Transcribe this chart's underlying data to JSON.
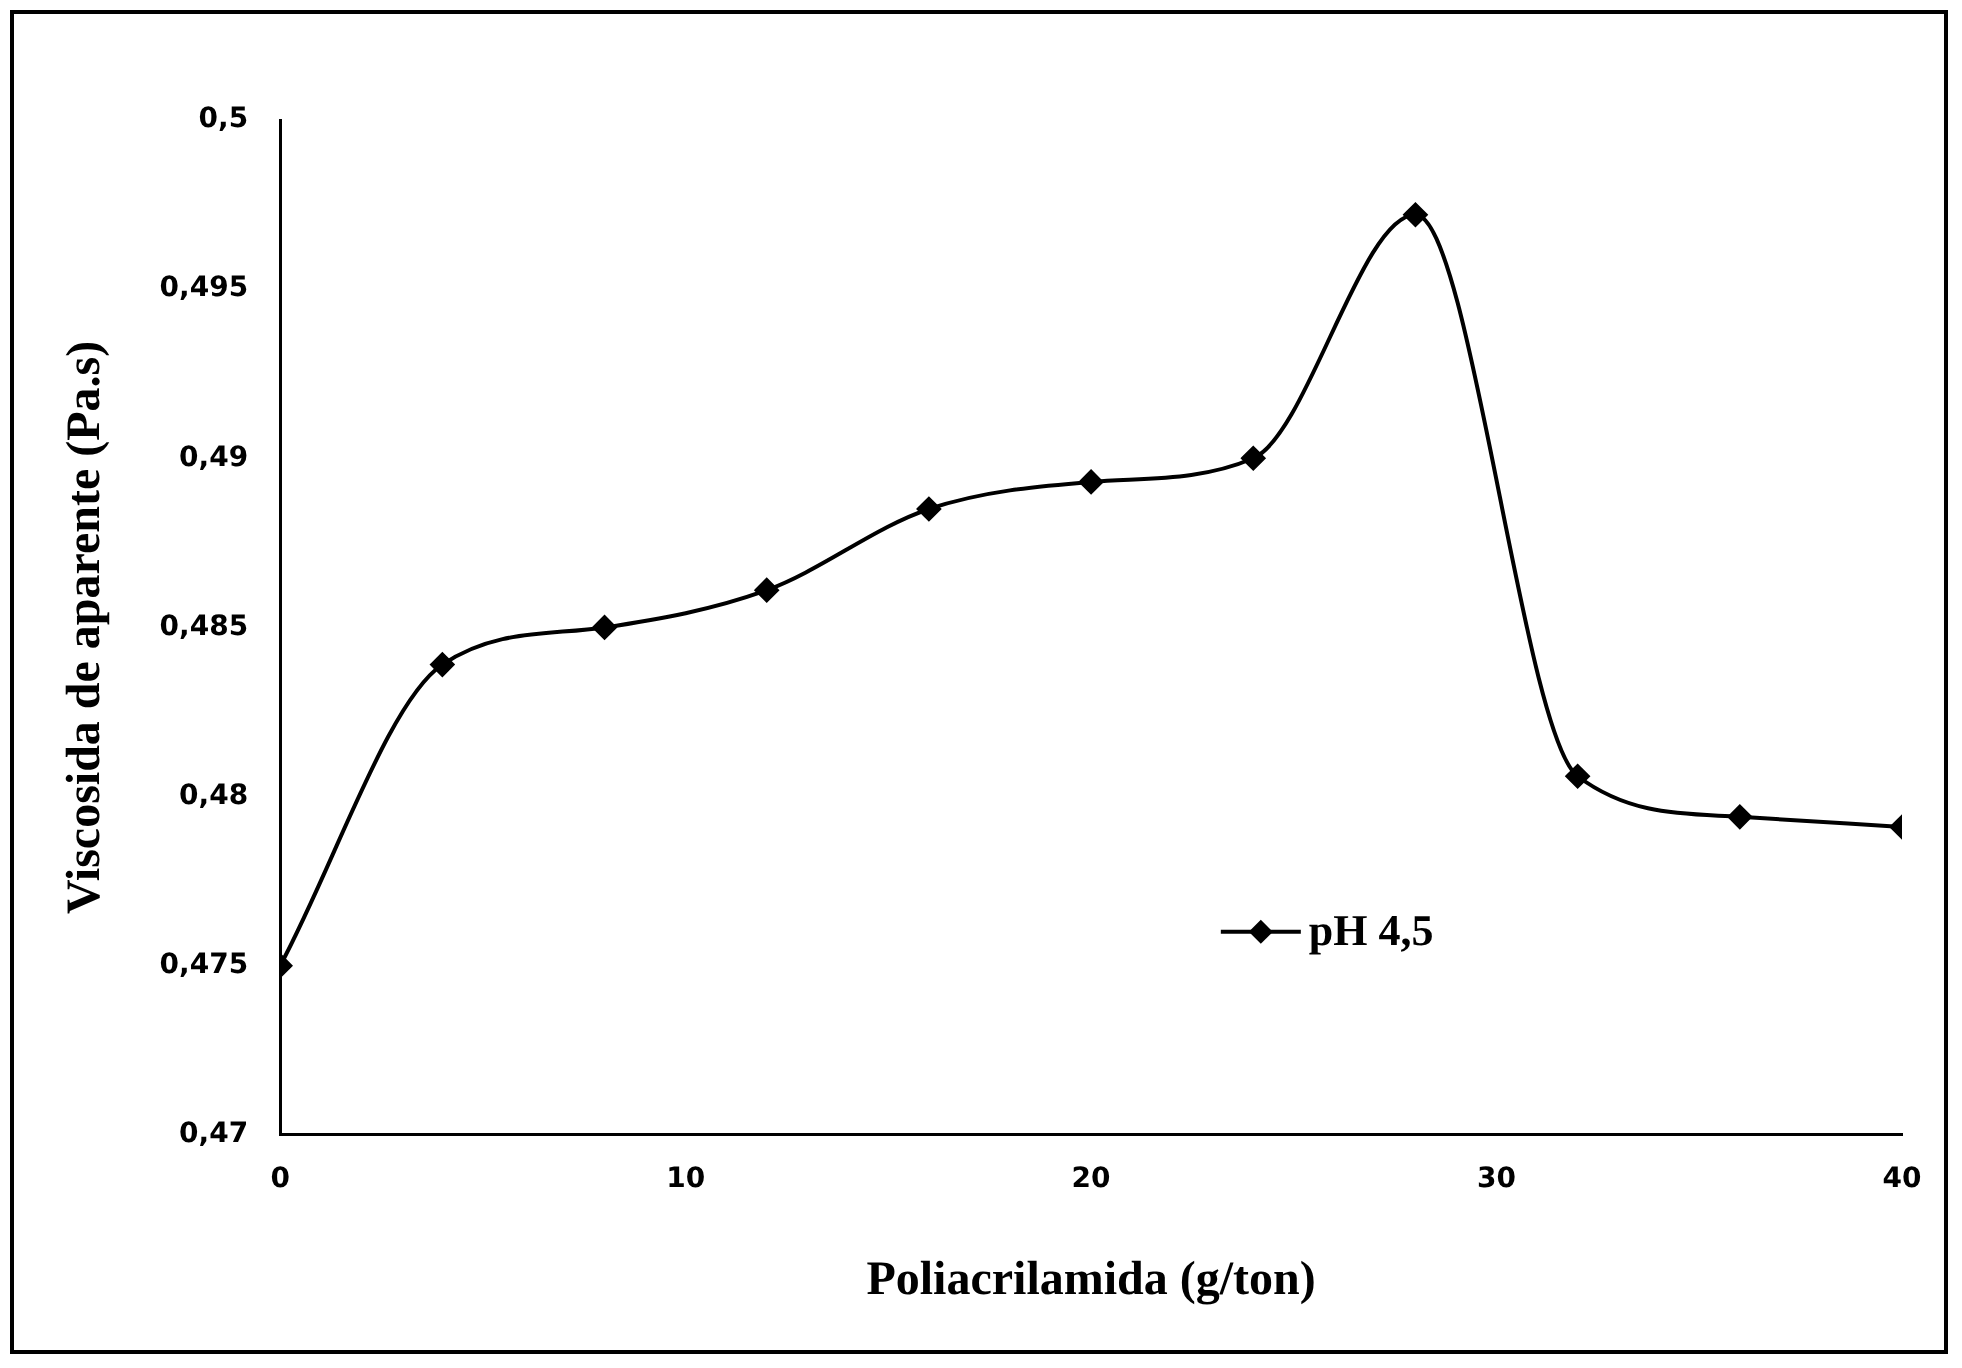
{
  "chart_data": {
    "type": "line",
    "xlabel": "Poliacrilamida (g/ton)",
    "ylabel": "Viscosida de aparente (Pa.s)",
    "x": [
      0,
      4,
      8,
      12,
      16,
      20,
      24,
      28,
      32,
      36,
      40
    ],
    "series": [
      {
        "name": "pH 4,5",
        "color": "#000000",
        "values": [
          0.475,
          0.4839,
          0.485,
          0.4861,
          0.4885,
          0.4893,
          0.49,
          0.4972,
          0.4806,
          0.4794,
          0.4791
        ]
      }
    ],
    "xlim": [
      0,
      40
    ],
    "xticks": [
      0,
      10,
      20,
      30,
      40
    ],
    "ylim": [
      0.47,
      0.5
    ],
    "yticks": [
      {
        "value": 0.47,
        "label": "0,47"
      },
      {
        "value": 0.475,
        "label": "0,475"
      },
      {
        "value": 0.48,
        "label": "0,48"
      },
      {
        "value": 0.485,
        "label": "0,485"
      },
      {
        "value": 0.49,
        "label": "0,49"
      },
      {
        "value": 0.495,
        "label": "0,495"
      },
      {
        "value": 0.5,
        "label": "0,5"
      }
    ],
    "grid": false,
    "legend": "right",
    "marker": "diamond",
    "line_style": "solid"
  }
}
